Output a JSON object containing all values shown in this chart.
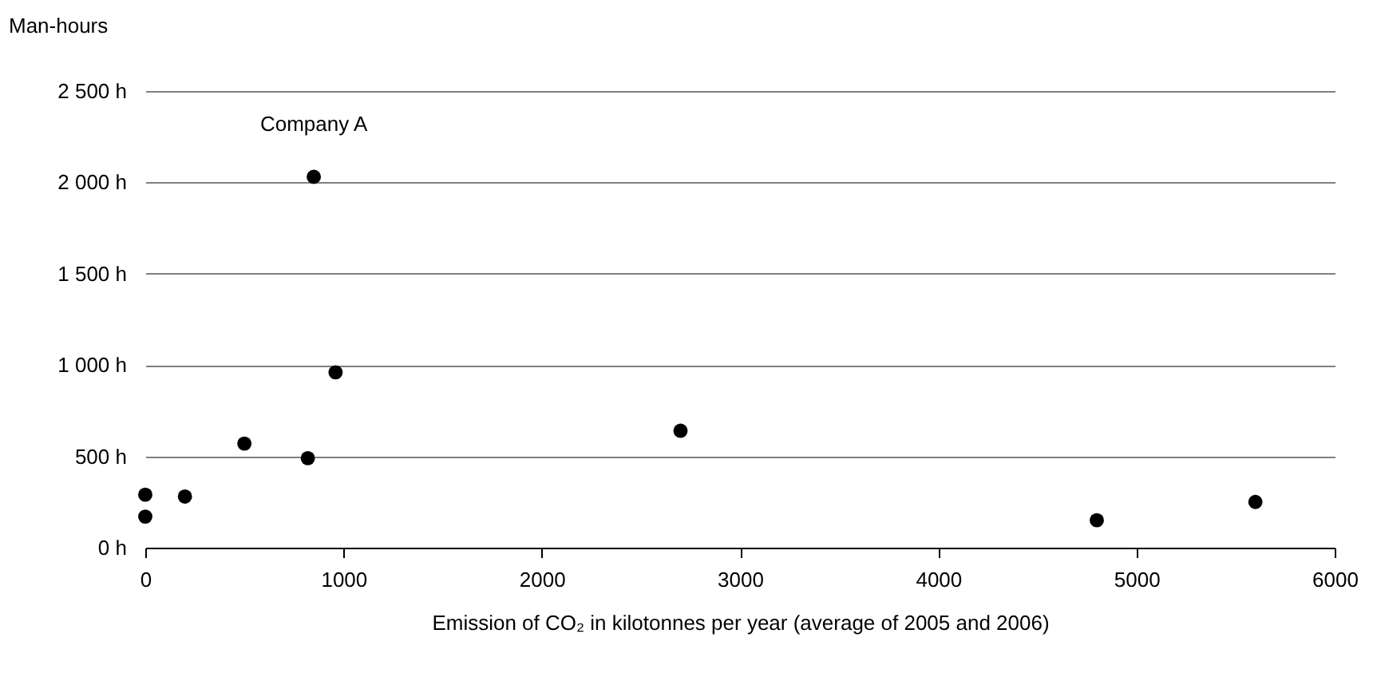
{
  "chart_data": {
    "type": "scatter",
    "xlabel": "Emission of CO₂ in kilotonnes per year (average of 2005 and 2006)",
    "ylabel": "Man-hours",
    "x": [
      0,
      0,
      200,
      500,
      820,
      850,
      960,
      2700,
      4800,
      5600
    ],
    "series": [
      {
        "color": "#000000",
        "values": [
          170,
          290,
          280,
          570,
          490,
          2030,
          960,
          640,
          150,
          250
        ]
      }
    ],
    "xlim": [
      0,
      6000
    ],
    "xticks": [
      0,
      1000,
      2000,
      3000,
      4000,
      5000,
      6000
    ],
    "ylim": [
      0,
      2500
    ],
    "yticks": [
      {
        "value": 0,
        "label": "0 h"
      },
      {
        "value": 500,
        "label": "500 h"
      },
      {
        "value": 1000,
        "label": "1 000 h"
      },
      {
        "value": 1500,
        "label": "1 500 h"
      },
      {
        "value": 2000,
        "label": "2 000 h"
      },
      {
        "value": 2500,
        "label": "2 500 h"
      }
    ],
    "grid": "y",
    "marker": "circle",
    "annotations": [
      {
        "text": "Company A",
        "x": 850,
        "y": 2030
      }
    ]
  }
}
